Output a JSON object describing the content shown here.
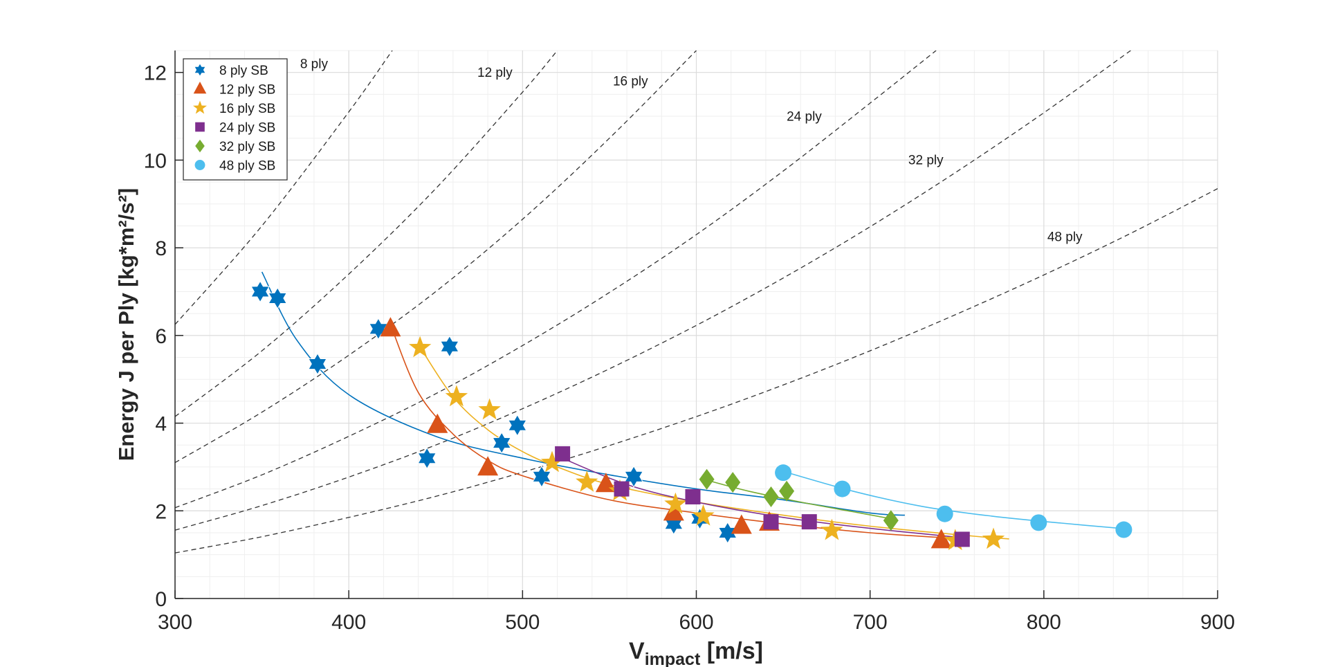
{
  "chart_data": {
    "type": "scatter",
    "title": "",
    "xlabel": "V",
    "xlabel_sub": "impact",
    "xlabel_unit": " [m/s]",
    "ylabel": "Energy J per Ply [kg*m²/s²]",
    "xlim": [
      300,
      900
    ],
    "ylim": [
      0,
      12.5
    ],
    "xticks": [
      300,
      400,
      500,
      600,
      700,
      800,
      900
    ],
    "yticks": [
      0,
      2,
      4,
      6,
      8,
      10,
      12
    ],
    "grid": true,
    "minor_grid": true,
    "legend_position": "top-left",
    "series": [
      {
        "name": "8 ply SB",
        "marker": "hexagram",
        "color": "#0072BD",
        "points": [
          [
            349,
            7.0
          ],
          [
            359,
            6.85
          ],
          [
            382,
            5.35
          ],
          [
            417,
            6.15
          ],
          [
            445,
            3.2
          ],
          [
            458,
            5.75
          ],
          [
            488,
            3.55
          ],
          [
            497,
            3.95
          ],
          [
            511,
            2.78
          ],
          [
            564,
            2.78
          ],
          [
            587,
            1.7
          ],
          [
            602,
            1.82
          ],
          [
            618,
            1.5
          ]
        ],
        "fit": [
          [
            350,
            7.45
          ],
          [
            370,
            5.9
          ],
          [
            400,
            4.65
          ],
          [
            450,
            3.7
          ],
          [
            500,
            3.2
          ],
          [
            550,
            2.82
          ],
          [
            600,
            2.5
          ],
          [
            650,
            2.25
          ],
          [
            700,
            1.95
          ],
          [
            720,
            1.9
          ]
        ]
      },
      {
        "name": "12 ply SB",
        "marker": "triangle",
        "color": "#D95319",
        "points": [
          [
            424,
            6.15
          ],
          [
            451,
            3.95
          ],
          [
            480,
            2.98
          ],
          [
            548,
            2.6
          ],
          [
            587,
            1.95
          ],
          [
            626,
            1.65
          ],
          [
            642,
            1.72
          ],
          [
            741,
            1.32
          ]
        ],
        "fit": [
          [
            424,
            6.25
          ],
          [
            440,
            4.7
          ],
          [
            460,
            3.75
          ],
          [
            480,
            3.15
          ],
          [
            500,
            2.8
          ],
          [
            550,
            2.25
          ],
          [
            600,
            1.95
          ],
          [
            650,
            1.7
          ],
          [
            700,
            1.5
          ],
          [
            745,
            1.38
          ]
        ]
      },
      {
        "name": "16 ply SB",
        "marker": "star",
        "color": "#EDB120",
        "points": [
          [
            441,
            5.72
          ],
          [
            462,
            4.6
          ],
          [
            481,
            4.3
          ],
          [
            517,
            3.1
          ],
          [
            537,
            2.65
          ],
          [
            556,
            2.45
          ],
          [
            588,
            2.15
          ],
          [
            604,
            1.88
          ],
          [
            678,
            1.55
          ],
          [
            749,
            1.32
          ],
          [
            771,
            1.35
          ]
        ],
        "fit": [
          [
            440,
            5.8
          ],
          [
            460,
            4.6
          ],
          [
            480,
            3.85
          ],
          [
            500,
            3.35
          ],
          [
            520,
            3.0
          ],
          [
            550,
            2.6
          ],
          [
            600,
            2.2
          ],
          [
            650,
            1.9
          ],
          [
            700,
            1.65
          ],
          [
            760,
            1.42
          ],
          [
            780,
            1.36
          ]
        ]
      },
      {
        "name": "24 ply SB",
        "marker": "square",
        "color": "#7E2F8E",
        "points": [
          [
            523,
            3.3
          ],
          [
            557,
            2.5
          ],
          [
            598,
            2.32
          ],
          [
            643,
            1.75
          ],
          [
            665,
            1.75
          ],
          [
            753,
            1.35
          ]
        ],
        "fit": [
          [
            520,
            3.25
          ],
          [
            560,
            2.6
          ],
          [
            600,
            2.2
          ],
          [
            650,
            1.85
          ],
          [
            700,
            1.6
          ],
          [
            755,
            1.38
          ]
        ]
      },
      {
        "name": "32 ply SB",
        "marker": "diamond",
        "color": "#77AC30",
        "points": [
          [
            606,
            2.72
          ],
          [
            621,
            2.65
          ],
          [
            643,
            2.32
          ],
          [
            652,
            2.45
          ],
          [
            712,
            1.78
          ]
        ],
        "fit": [
          [
            606,
            2.7
          ],
          [
            630,
            2.45
          ],
          [
            660,
            2.2
          ],
          [
            690,
            1.98
          ],
          [
            715,
            1.8
          ]
        ]
      },
      {
        "name": "48 ply SB",
        "marker": "circle",
        "color": "#4DBEEE",
        "points": [
          [
            650,
            2.87
          ],
          [
            684,
            2.5
          ],
          [
            743,
            1.93
          ],
          [
            797,
            1.73
          ],
          [
            846,
            1.57
          ]
        ],
        "fit": [
          [
            650,
            2.9
          ],
          [
            690,
            2.45
          ],
          [
            730,
            2.1
          ],
          [
            770,
            1.88
          ],
          [
            810,
            1.72
          ],
          [
            850,
            1.58
          ]
        ]
      }
    ],
    "reference_curves": [
      {
        "label": "8 ply",
        "points": [
          [
            300,
            6.25
          ],
          [
            350,
            8.5
          ],
          [
            400,
            11.1
          ],
          [
            425,
            12.5
          ]
        ],
        "label_at": [
          372,
          12.1
        ]
      },
      {
        "label": "12 ply",
        "points": [
          [
            300,
            4.15
          ],
          [
            350,
            5.65
          ],
          [
            400,
            7.4
          ],
          [
            450,
            9.35
          ],
          [
            500,
            11.55
          ],
          [
            520,
            12.5
          ]
        ],
        "label_at": [
          474,
          11.9
        ]
      },
      {
        "label": "16 ply",
        "points": [
          [
            300,
            3.1
          ],
          [
            350,
            4.25
          ],
          [
            400,
            5.55
          ],
          [
            450,
            7.0
          ],
          [
            500,
            8.65
          ],
          [
            550,
            10.5
          ],
          [
            600,
            12.5
          ]
        ],
        "label_at": [
          552,
          11.7
        ]
      },
      {
        "label": "24 ply",
        "points": [
          [
            300,
            2.07
          ],
          [
            350,
            2.82
          ],
          [
            400,
            3.7
          ],
          [
            450,
            4.67
          ],
          [
            500,
            5.77
          ],
          [
            550,
            6.98
          ],
          [
            600,
            8.3
          ],
          [
            650,
            9.75
          ],
          [
            700,
            11.3
          ],
          [
            738,
            12.5
          ]
        ],
        "label_at": [
          652,
          10.9
        ]
      },
      {
        "label": "32 ply",
        "points": [
          [
            300,
            1.56
          ],
          [
            350,
            2.12
          ],
          [
            400,
            2.77
          ],
          [
            450,
            3.5
          ],
          [
            500,
            4.33
          ],
          [
            550,
            5.24
          ],
          [
            600,
            6.23
          ],
          [
            650,
            7.31
          ],
          [
            700,
            8.48
          ],
          [
            750,
            9.74
          ],
          [
            800,
            11.08
          ],
          [
            850,
            12.5
          ]
        ],
        "label_at": [
          722,
          9.9
        ]
      },
      {
        "label": "48 ply",
        "points": [
          [
            300,
            1.04
          ],
          [
            350,
            1.41
          ],
          [
            400,
            1.85
          ],
          [
            450,
            2.33
          ],
          [
            500,
            2.88
          ],
          [
            550,
            3.49
          ],
          [
            600,
            4.15
          ],
          [
            650,
            4.87
          ],
          [
            700,
            5.65
          ],
          [
            750,
            6.49
          ],
          [
            800,
            7.38
          ],
          [
            850,
            8.33
          ],
          [
            900,
            9.35
          ]
        ],
        "label_at": [
          802,
          8.15
        ]
      }
    ]
  }
}
